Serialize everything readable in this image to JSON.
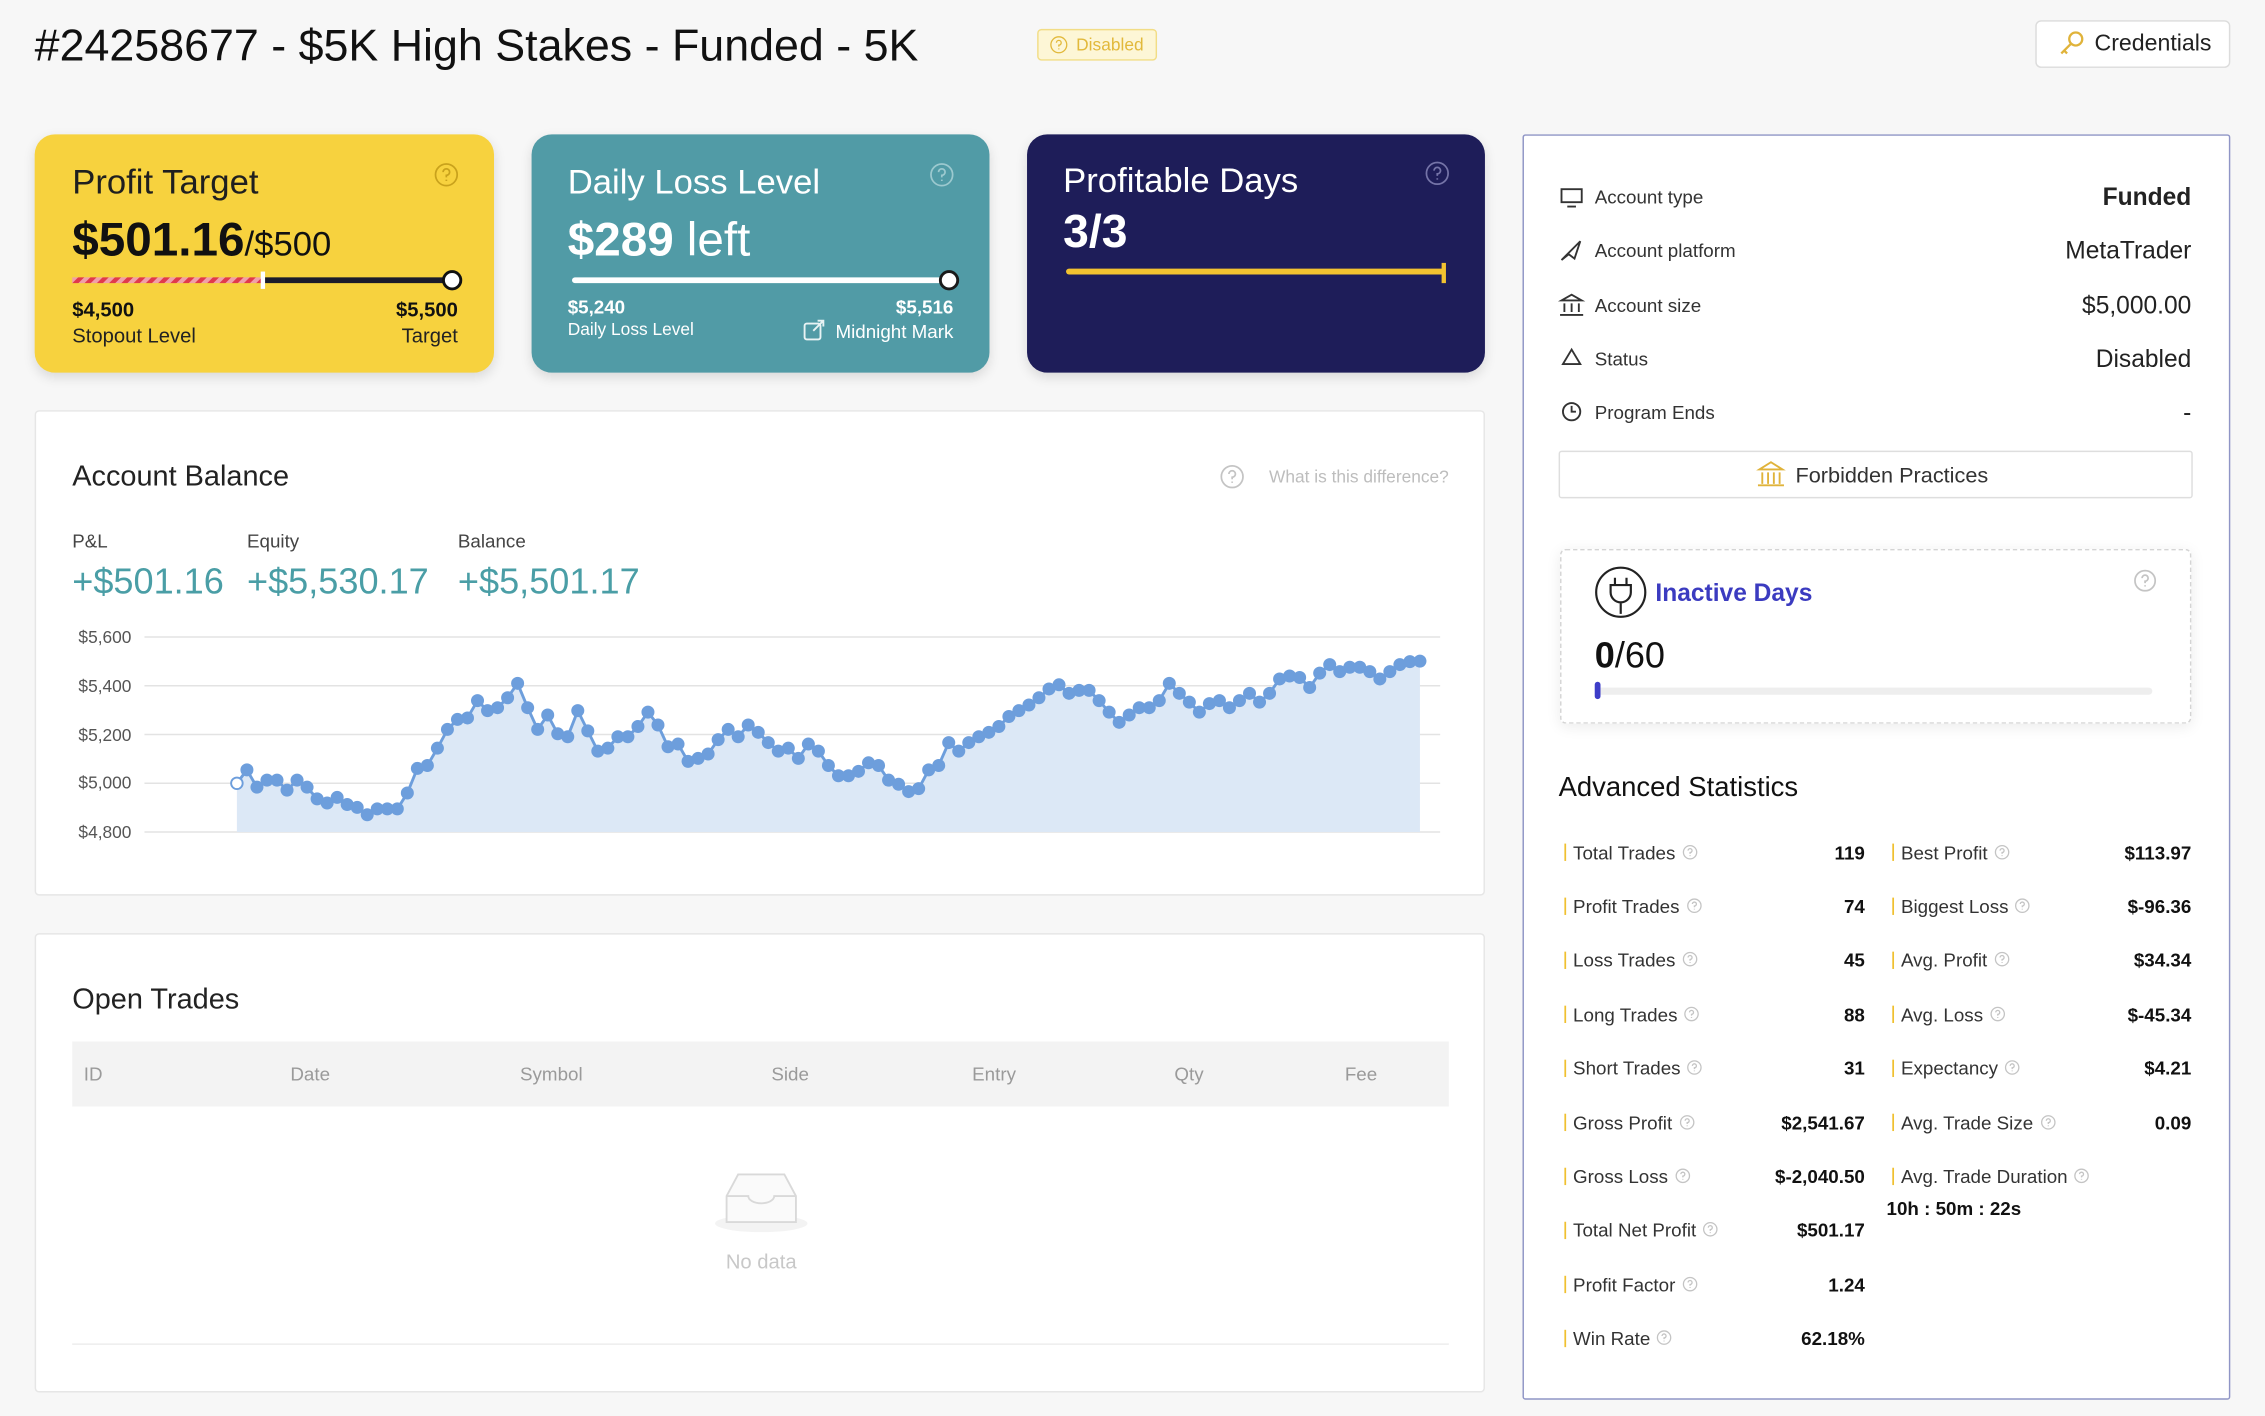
{
  "header": {
    "title": "#24258677 - $5K High Stakes - Funded - 5K",
    "badge": "Disabled",
    "button": "Credentials"
  },
  "cards": [
    {
      "title": "Profit Target",
      "value": "$501.16",
      "suffix": "/$500",
      "left_value": "$4,500",
      "left_label": "Stopout Level",
      "right_value": "$5,500",
      "right_label": "Target"
    },
    {
      "title": "Daily Loss Level",
      "value": "$289",
      "suffix": "left",
      "left_value": "$5,240",
      "left_label": "Daily Loss Level",
      "right_value": "$5,516",
      "right_label": "Midnight Mark"
    },
    {
      "title": "Profitable Days",
      "value": "3/3"
    }
  ],
  "balance": {
    "help": "What is this difference?",
    "metrics": [
      {
        "label": "P&L",
        "value": "+$501.16"
      },
      {
        "label": "Equity",
        "value": "+$5,530.17"
      },
      {
        "label": "Balance",
        "value": "+$5,501.17"
      }
    ]
  },
  "chart_data": {
    "type": "area",
    "title": "Account Balance",
    "color": "#6d9edc",
    "values": [
      5000,
      5055,
      4984,
      5013,
      5013,
      4972,
      5013,
      4984,
      4936,
      4919,
      4942,
      4913,
      4901,
      4871,
      4895,
      4895,
      4895,
      4960,
      5061,
      5073,
      5144,
      5221,
      5262,
      5268,
      5339,
      5298,
      5310,
      5351,
      5410,
      5310,
      5221,
      5280,
      5203,
      5191,
      5298,
      5215,
      5132,
      5144,
      5191,
      5191,
      5233,
      5292,
      5239,
      5150,
      5161,
      5090,
      5102,
      5120,
      5179,
      5221,
      5191,
      5239,
      5209,
      5167,
      5132,
      5144,
      5102,
      5161,
      5132,
      5073,
      5031,
      5031,
      5049,
      5084,
      5073,
      5013,
      4996,
      4966,
      4978,
      5055,
      5073,
      5167,
      5132,
      5167,
      5191,
      5209,
      5233,
      5274,
      5298,
      5321,
      5351,
      5387,
      5404,
      5369,
      5381,
      5381,
      5339,
      5292,
      5250,
      5280,
      5310,
      5310,
      5339,
      5410,
      5369,
      5333,
      5292,
      5327,
      5339,
      5310,
      5339,
      5369,
      5333,
      5369,
      5428,
      5440,
      5434,
      5393,
      5452,
      5487,
      5458,
      5476,
      5476,
      5458,
      5428,
      5458,
      5487,
      5499,
      5501
    ],
    "ylim": [
      4800,
      5600
    ],
    "yticks": [
      {
        "value": 4800,
        "label": "$4,800"
      },
      {
        "value": 5000,
        "label": "$5,000"
      },
      {
        "value": 5200,
        "label": "$5,200"
      },
      {
        "value": 5400,
        "label": "$5,400"
      },
      {
        "value": 5600,
        "label": "$5,600"
      }
    ],
    "grid": true
  },
  "open_trades": {
    "title": "Open Trades",
    "columns": [
      "ID",
      "Date",
      "Symbol",
      "Side",
      "Entry",
      "Qty",
      "Fee"
    ],
    "empty": "No data"
  },
  "account": {
    "rows": [
      {
        "label": "Account type",
        "value": "Funded"
      },
      {
        "label": "Account platform",
        "value": "MetaTrader"
      },
      {
        "label": "Account size",
        "value": "$5,000.00"
      },
      {
        "label": "Status",
        "value": "Disabled"
      },
      {
        "label": "Program Ends",
        "value": "-"
      }
    ],
    "button": "Forbidden Practices"
  },
  "inactive_days": {
    "title": "Inactive Days",
    "value": "0",
    "total": "/60"
  },
  "advanced_statistics": {
    "title": "Advanced Statistics",
    "left": [
      {
        "label": "Total Trades",
        "value": "119"
      },
      {
        "label": "Profit Trades",
        "value": "74"
      },
      {
        "label": "Loss Trades",
        "value": "45"
      },
      {
        "label": "Long Trades",
        "value": "88"
      },
      {
        "label": "Short Trades",
        "value": "31"
      },
      {
        "label": "Gross Profit",
        "value": "$2,541.67"
      },
      {
        "label": "Gross Loss",
        "value": "$-2,040.50"
      },
      {
        "label": "Total Net Profit",
        "value": "$501.17"
      },
      {
        "label": "Profit Factor",
        "value": "1.24"
      },
      {
        "label": "Win Rate",
        "value": "62.18%"
      }
    ],
    "right": [
      {
        "label": "Best Profit",
        "value": "$113.97"
      },
      {
        "label": "Biggest Loss",
        "value": "$-96.36"
      },
      {
        "label": "Avg. Profit",
        "value": "$34.34"
      },
      {
        "label": "Avg. Loss",
        "value": "$-45.34"
      },
      {
        "label": "Expectancy",
        "value": "$4.21"
      },
      {
        "label": "Avg. Trade Size",
        "value": "0.09"
      },
      {
        "label": "Avg. Trade Duration",
        "value": "10h : 50m : 22s"
      }
    ]
  }
}
